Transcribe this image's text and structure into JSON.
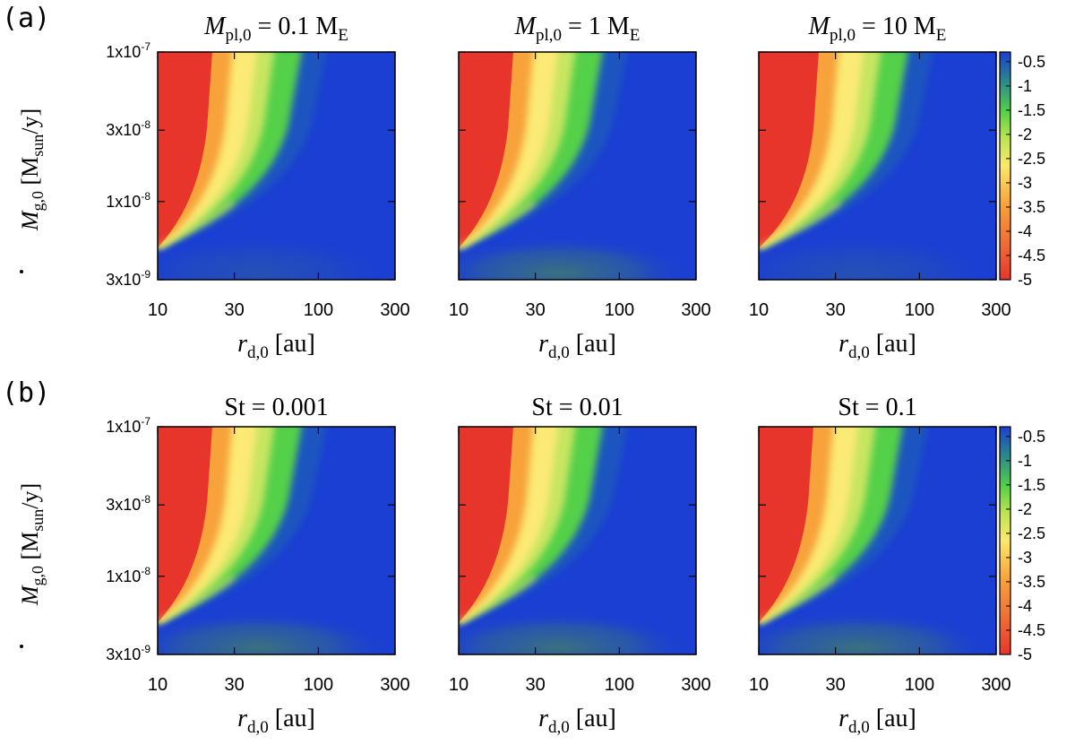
{
  "chart_data": {
    "type": "heatmap",
    "colors": {
      "red": "#e8352b",
      "orange": "#f7a23a",
      "yellow": "#fbea74",
      "green": "#54d048",
      "blue": "#1b3fd2",
      "dusty_blue": "#3a6680"
    },
    "colorbar": {
      "ticks": [
        "-0.5",
        "-1",
        "-1.5",
        "-2",
        "-2.5",
        "-3",
        "-3.5",
        "-4",
        "-4.5",
        "-5"
      ],
      "range": [
        -5,
        -0.3
      ]
    },
    "x_axis": {
      "label_var": "r",
      "label_sub": "d,0",
      "label_unit": "[au]",
      "scale": "log",
      "range": [
        10,
        300
      ],
      "ticks": [
        {
          "value": 10,
          "label": "10"
        },
        {
          "value": 30,
          "label": "30"
        },
        {
          "value": 100,
          "label": "100"
        },
        {
          "value": 300,
          "label": "300"
        }
      ]
    },
    "y_axis": {
      "label_var": "M",
      "label_sub": "g,0",
      "label_unit_open": "[M",
      "label_unit_sub": "sun",
      "label_unit_close": "/y]",
      "scale": "log",
      "range": [
        3e-09,
        1e-07
      ],
      "ticks": [
        {
          "value": 1e-07,
          "base": "1x10",
          "exp": "-7"
        },
        {
          "value": 3e-08,
          "base": "3x10",
          "exp": "-8"
        },
        {
          "value": 1e-08,
          "base": "1x10",
          "exp": "-8"
        },
        {
          "value": 3e-09,
          "base": "3x10",
          "exp": "-9"
        }
      ]
    },
    "rows": [
      {
        "label": "(a)",
        "panels": [
          {
            "title_var": "M",
            "title_sub": "pl,0",
            "title_eq": " = 0.1 M",
            "title_unit_sub": "E"
          },
          {
            "title_var": "M",
            "title_sub": "pl,0",
            "title_eq": " = 1 M",
            "title_unit_sub": "E"
          },
          {
            "title_var": "M",
            "title_sub": "pl,0",
            "title_eq": " = 10 M",
            "title_unit_sub": "E"
          }
        ]
      },
      {
        "label": "(b)",
        "panels": [
          {
            "title_plain": "St = 0.001"
          },
          {
            "title_plain": "St = 0.01"
          },
          {
            "title_plain": "St = 0.1"
          }
        ]
      }
    ]
  }
}
